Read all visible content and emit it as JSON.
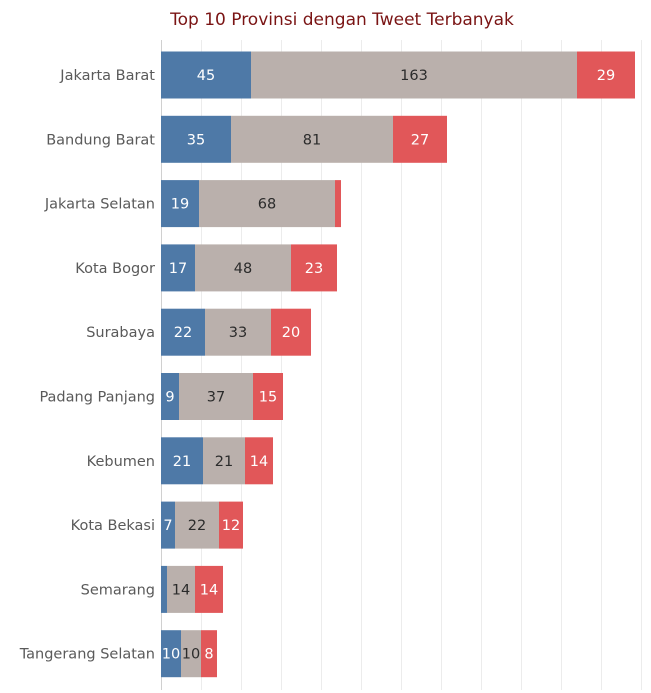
{
  "chart_data": {
    "type": "bar",
    "orientation": "horizontal",
    "stacked": true,
    "title": "Top 10 Provinsi dengan Tweet Terbanyak",
    "xlabel": "",
    "ylabel": "",
    "xlim": [
      0,
      240
    ],
    "grid": "vertical",
    "legend": "none",
    "categories": [
      "Jakarta Barat",
      "Bandung Barat",
      "Jakarta Selatan",
      "Kota Bogor",
      "Surabaya",
      "Padang Panjang",
      "Kebumen",
      "Kota Bekasi",
      "Semarang",
      "Tangerang Selatan"
    ],
    "series": [
      {
        "color": "#4e79a7",
        "label_color": "#ffffff",
        "values": [
          45,
          35,
          19,
          17,
          22,
          9,
          21,
          7,
          3,
          10
        ],
        "labels": [
          "45",
          "35",
          "19",
          "17",
          "22",
          "9",
          "21",
          "7",
          "",
          "10"
        ]
      },
      {
        "color": "#bab0ac",
        "label_color": "#2b2b2b",
        "values": [
          163,
          81,
          68,
          48,
          33,
          37,
          21,
          22,
          14,
          10
        ],
        "labels": [
          "163",
          "81",
          "68",
          "48",
          "33",
          "37",
          "21",
          "22",
          "14",
          "10"
        ]
      },
      {
        "color": "#e15759",
        "label_color": "#ffffff",
        "values": [
          29,
          27,
          3,
          23,
          20,
          15,
          14,
          12,
          14,
          8
        ],
        "labels": [
          "29",
          "27",
          "",
          "23",
          "20",
          "15",
          "14",
          "12",
          "14",
          "8"
        ]
      }
    ]
  }
}
